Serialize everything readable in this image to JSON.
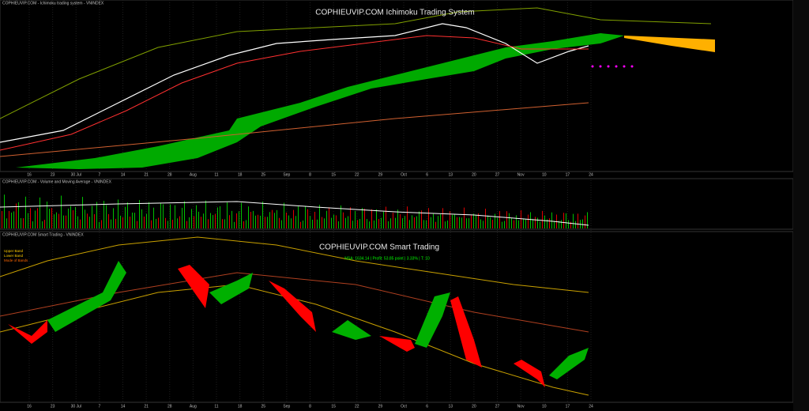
{
  "ichimoku_panel": {
    "header": "COPHIEUVIP.COM - Ichimoku trading system - VNINDEX",
    "title": "COPHIEUVIP.COM Ichimoku Trading System"
  },
  "volume_panel": {
    "header": "COPHIEUVIP.COM - Volume and Moving Average - VNINDEX"
  },
  "smart_panel": {
    "header": "COPHIEUVIP.COM Smart Trading - VNINDEX",
    "title": "COPHIEUVIP.COM Smart Trading",
    "stats": "NSA: 1634.14 | Profit: 53.85 point | 3.33% | T: 10",
    "legend": [
      "Upper Band",
      "Lower Band",
      "Mode of Bands"
    ]
  },
  "date_axis": [
    "16",
    "23",
    "30 Jul",
    "7",
    "14",
    "21",
    "28",
    "Aug",
    "11",
    "18",
    "25",
    "Sep",
    "8",
    "15",
    "22",
    "29",
    "Oct",
    "6",
    "13",
    "20",
    "27",
    "Nov",
    "10",
    "17",
    "24"
  ]
}
